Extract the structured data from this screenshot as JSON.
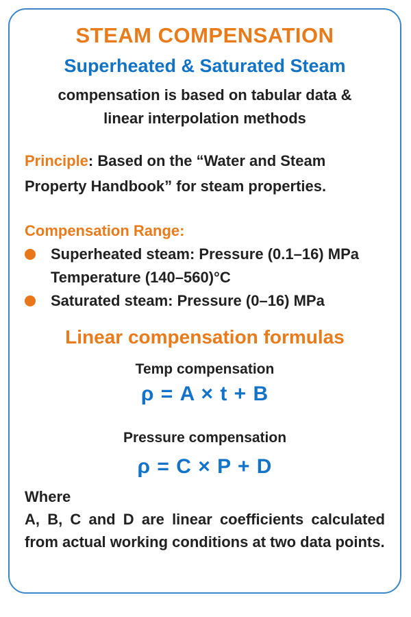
{
  "colors": {
    "accent_orange": "#e87b1b",
    "accent_blue": "#1272c4",
    "border_blue": "#3a86c8",
    "text_dark": "#212121"
  },
  "card": {
    "title": "STEAM COMPENSATION",
    "subtitle": "Superheated & Saturated Steam",
    "tagline": "compensation is based on tabular data & linear interpolation methods",
    "principle": {
      "label": "Principle",
      "text": ": Based on the “Water and Steam Property Handbook” for steam properties."
    },
    "range": {
      "heading": "Compensation Range:",
      "items": [
        {
          "lines": [
            "Superheated steam: Pressure (0.1–16) MPa",
            "Temperature (140–560)°C"
          ]
        },
        {
          "lines": [
            "Saturated steam: Pressure (0–16) MPa"
          ]
        }
      ]
    },
    "formulas": {
      "heading": "Linear compensation formulas",
      "temp": {
        "label": "Temp compensation",
        "formula": "ρ = A × t + B"
      },
      "pressure": {
        "label": "Pressure compensation",
        "formula": "ρ = C × P + D"
      }
    },
    "where": {
      "label": "Where",
      "text": "A, B, C and D are linear coefficients calculated from actual working conditions at two data points."
    }
  }
}
